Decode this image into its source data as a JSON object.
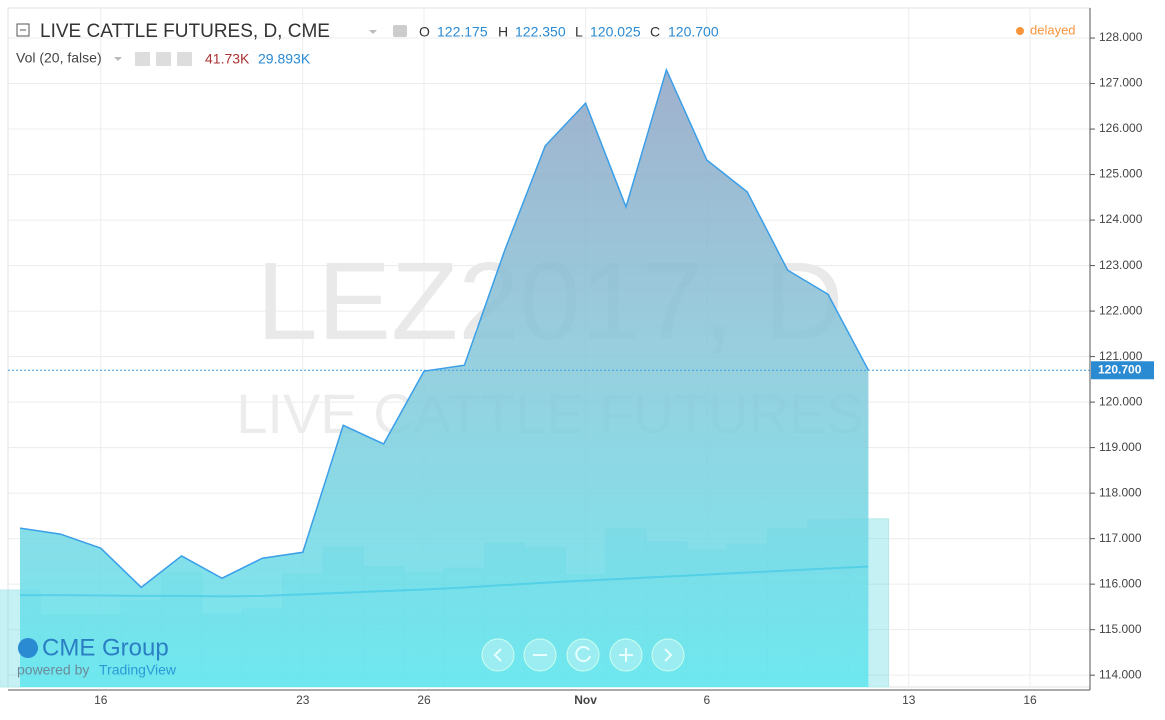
{
  "header": {
    "title": "LIVE CATTLE FUTURES, D, CME",
    "open_label": "O",
    "open": "122.175",
    "high_label": "H",
    "high": "122.350",
    "low_label": "L",
    "low": "120.025",
    "close_label": "C",
    "close": "120.700",
    "volume_study": "Vol (20, false)",
    "volume": "41.73K",
    "volume_ma": "29.893K",
    "status": "delayed"
  },
  "watermark": {
    "symbol": "LEZ2017, D",
    "name": "LIVE CATTLE FUTURES"
  },
  "branding": {
    "logo": "CME Group",
    "powered_by": "powered by",
    "provider": "TradingView"
  },
  "chart_data": {
    "type": "area",
    "categories": [
      null,
      null,
      "16",
      null,
      null,
      null,
      null,
      "23",
      null,
      null,
      "26",
      null,
      null,
      null,
      "Nov",
      null,
      null,
      "6",
      null,
      null,
      null,
      null,
      "13",
      null,
      null,
      "16"
    ],
    "series": [
      {
        "name": "LEZ2017",
        "color": "#3a9fe8",
        "values": [
          117.23,
          117.1,
          116.79,
          115.93,
          116.62,
          116.13,
          116.57,
          116.7,
          119.49,
          119.08,
          120.68,
          120.81,
          123.34,
          125.63,
          126.57,
          124.29,
          127.3,
          125.32,
          124.62,
          122.9,
          122.37,
          120.7,
          null,
          null,
          null,
          null
        ]
      },
      {
        "name": "Volume",
        "axis": "y2",
        "color": "#5ad8e0",
        "values": [
          24.07,
          17.87,
          17.87,
          21.34,
          28.29,
          18.11,
          19.35,
          28.04,
          34.74,
          29.78,
          28.29,
          29.53,
          35.73,
          34.49,
          27.79,
          39.21,
          35.98,
          34.0,
          35.48,
          39.21,
          41.5,
          41.73,
          null,
          null,
          null,
          null
        ]
      },
      {
        "name": "Volume MA",
        "axis": "y2",
        "color": "#3cc6e6",
        "values": [
          22.8,
          22.8,
          22.7,
          22.6,
          22.6,
          22.5,
          22.6,
          23.0,
          23.4,
          23.8,
          24.2,
          24.7,
          25.3,
          25.9,
          26.4,
          26.9,
          27.4,
          27.9,
          28.4,
          28.9,
          29.4,
          29.893,
          null,
          null,
          null,
          null
        ]
      }
    ],
    "ylim": [
      113.74,
      128.66
    ],
    "yticks": [
      {
        "value": 114,
        "label": "114.000"
      },
      {
        "value": 115,
        "label": "115.000"
      },
      {
        "value": 116,
        "label": "116.000"
      },
      {
        "value": 117,
        "label": "117.000"
      },
      {
        "value": 118,
        "label": "118.000"
      },
      {
        "value": 119,
        "label": "119.000"
      },
      {
        "value": 120,
        "label": "120.000"
      },
      {
        "value": 121,
        "label": "121.000"
      },
      {
        "value": 122,
        "label": "122.000"
      },
      {
        "value": 123,
        "label": "123.000"
      },
      {
        "value": 124,
        "label": "124.000"
      },
      {
        "value": 125,
        "label": "125.000"
      },
      {
        "value": 126,
        "label": "126.000"
      },
      {
        "value": 127,
        "label": "127.000"
      },
      {
        "value": 128,
        "label": "128.000"
      }
    ],
    "y2lim": [
      0,
      168.5
    ],
    "last_price": {
      "value": 120.7,
      "label": "120.700"
    },
    "grid": true
  }
}
